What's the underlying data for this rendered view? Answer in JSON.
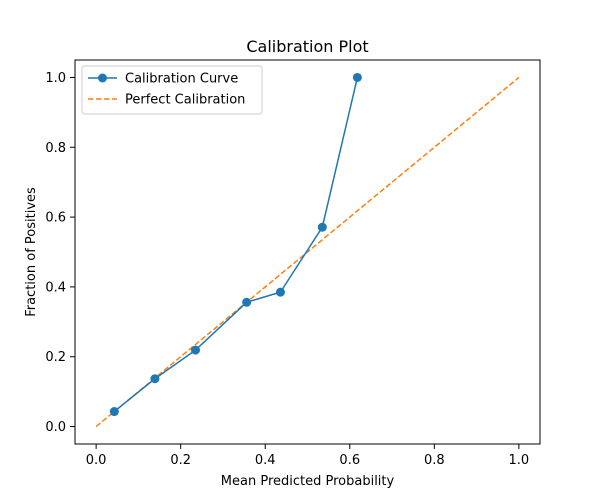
{
  "chart_data": {
    "type": "line",
    "title": "Calibration Plot",
    "xlabel": "Mean Predicted Probability",
    "ylabel": "Fraction of Positives",
    "xlim": [
      -0.05,
      1.05
    ],
    "ylim": [
      -0.05,
      1.05
    ],
    "x_ticks": [
      "0.0",
      "0.2",
      "0.4",
      "0.6",
      "0.8",
      "1.0"
    ],
    "y_ticks": [
      "0.0",
      "0.2",
      "0.4",
      "0.6",
      "0.8",
      "1.0"
    ],
    "grid": false,
    "legend_position": "upper-left",
    "series": [
      {
        "name": "Calibration Curve",
        "color": "#1f77b4",
        "style": "solid",
        "marker": "circle",
        "x": [
          0.043,
          0.139,
          0.235,
          0.356,
          0.436,
          0.535,
          0.618
        ],
        "y": [
          0.043,
          0.137,
          0.219,
          0.356,
          0.385,
          0.571,
          1.0
        ]
      },
      {
        "name": "Perfect Calibration",
        "color": "#ff7f0e",
        "style": "dashed",
        "marker": "none",
        "x": [
          0.0,
          1.0
        ],
        "y": [
          0.0,
          1.0
        ]
      }
    ]
  }
}
